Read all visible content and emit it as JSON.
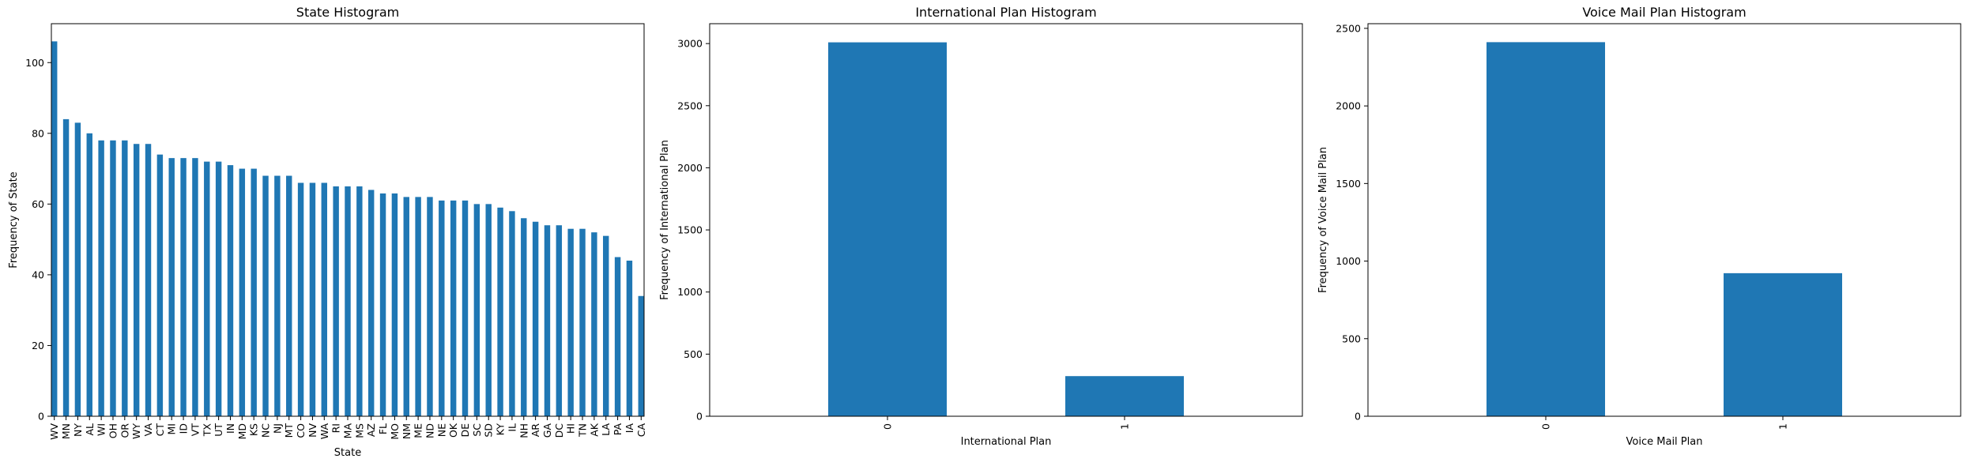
{
  "chart_data": [
    {
      "type": "bar",
      "title": "State Histogram",
      "xlabel": "State",
      "ylabel": "Frequency of State",
      "ylim": [
        0,
        111
      ],
      "yticks": [
        0,
        20,
        40,
        60,
        80,
        100
      ],
      "grid": false,
      "bar_color": "#1f77b4",
      "categories": [
        "WV",
        "MN",
        "NY",
        "AL",
        "WI",
        "OH",
        "OR",
        "WY",
        "VA",
        "CT",
        "MI",
        "ID",
        "VT",
        "TX",
        "UT",
        "IN",
        "MD",
        "KS",
        "NC",
        "NJ",
        "MT",
        "CO",
        "NV",
        "WA",
        "RI",
        "MA",
        "MS",
        "AZ",
        "FL",
        "MO",
        "NM",
        "ME",
        "ND",
        "NE",
        "OK",
        "DE",
        "SC",
        "SD",
        "KY",
        "IL",
        "NH",
        "AR",
        "GA",
        "DC",
        "HI",
        "TN",
        "AK",
        "LA",
        "PA",
        "IA",
        "CA"
      ],
      "values": [
        106,
        84,
        83,
        80,
        78,
        78,
        78,
        77,
        77,
        74,
        73,
        73,
        73,
        72,
        72,
        71,
        70,
        70,
        68,
        68,
        68,
        66,
        66,
        66,
        65,
        65,
        65,
        64,
        63,
        63,
        62,
        62,
        62,
        61,
        61,
        61,
        60,
        60,
        59,
        58,
        56,
        55,
        54,
        54,
        53,
        53,
        52,
        51,
        45,
        44,
        34
      ]
    },
    {
      "type": "bar",
      "title": "International Plan Histogram",
      "xlabel": "International Plan",
      "ylabel": "Frequency of International Plan",
      "ylim": [
        0,
        3160
      ],
      "yticks": [
        0,
        500,
        1000,
        1500,
        2000,
        2500,
        3000
      ],
      "grid": false,
      "bar_color": "#1f77b4",
      "categories": [
        "0",
        "1"
      ],
      "values": [
        3010,
        323
      ]
    },
    {
      "type": "bar",
      "title": "Voice Mail Plan Histogram",
      "xlabel": "Voice Mail Plan",
      "ylabel": "Frequency of Voice Mail Plan",
      "ylim": [
        0,
        2530
      ],
      "yticks": [
        0,
        500,
        1000,
        1500,
        2000,
        2500
      ],
      "grid": false,
      "bar_color": "#1f77b4",
      "categories": [
        "0",
        "1"
      ],
      "values": [
        2411,
        922
      ]
    }
  ]
}
